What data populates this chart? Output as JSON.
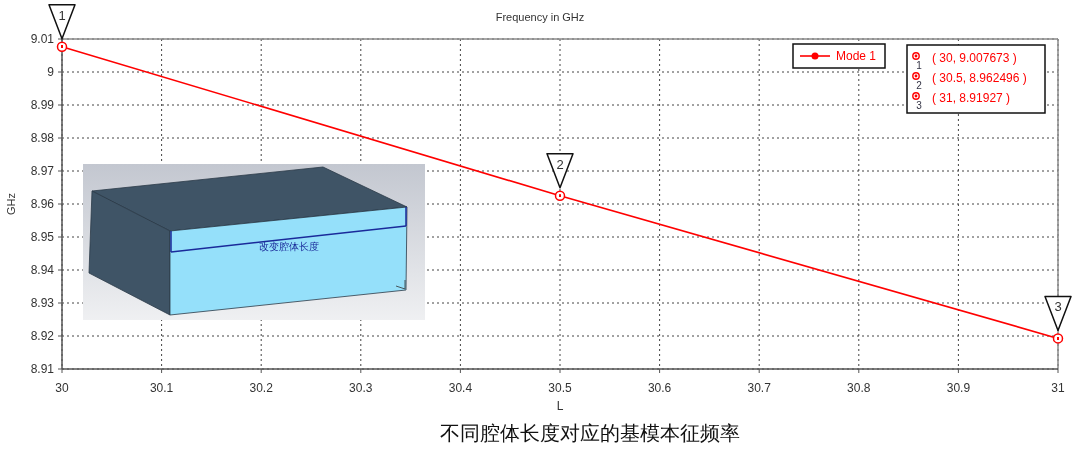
{
  "chart_data": {
    "type": "line",
    "title": "Frequency in GHz",
    "xlabel": "L",
    "ylabel": "GHz",
    "x": [
      30,
      30.5,
      31
    ],
    "series": [
      {
        "name": "Mode 1",
        "color": "#ff0000",
        "values": [
          9.007673,
          8.962496,
          8.91927
        ]
      }
    ],
    "xlim": [
      30,
      31
    ],
    "xticks": [
      30,
      30.1,
      30.2,
      30.3,
      30.4,
      30.5,
      30.6,
      30.7,
      30.8,
      30.9,
      31
    ],
    "ylim": [
      8.91,
      9.01
    ],
    "yticks": [
      8.91,
      8.92,
      8.93,
      8.94,
      8.95,
      8.96,
      8.97,
      8.98,
      8.99,
      9,
      9.01
    ],
    "grid": true,
    "legend": "top right",
    "marker": "circle",
    "annotations": [
      {
        "text": "1",
        "x": 30,
        "y": 9.007673
      },
      {
        "text": "2",
        "x": 30.5,
        "y": 8.962496
      },
      {
        "text": "3",
        "x": 31,
        "y": 8.91927
      },
      "( 30, 9.007673 )",
      "( 30.5, 8.962496 )",
      "( 31, 8.91927 )",
      "改变腔体长度",
      "不同腔体长度对应的基模本征频率"
    ]
  }
}
